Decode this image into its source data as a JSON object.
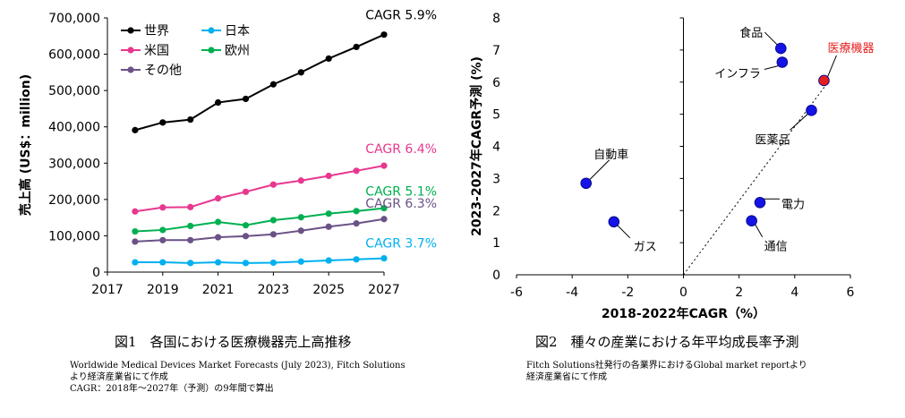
{
  "charts": {
    "left": {
      "type": "line",
      "ylabel": "売上高 (US$：million)",
      "xlim": [
        2017,
        2027
      ],
      "ylim": [
        0,
        700000
      ],
      "xticks": [
        "2017",
        "2019",
        "2021",
        "2023",
        "2025",
        "2027"
      ],
      "yticks": [
        "0",
        "100,000",
        "200,000",
        "300,000",
        "400,000",
        "500,000",
        "600,000",
        "700,000"
      ],
      "x": [
        2018,
        2019,
        2020,
        2021,
        2022,
        2023,
        2024,
        2025,
        2026,
        2027
      ],
      "series": [
        {
          "name": "世界",
          "color": "#000000",
          "values": [
            391000,
            412000,
            420000,
            467000,
            477000,
            517000,
            550000,
            588000,
            620000,
            654000
          ],
          "annotation": "CAGR 5.9%"
        },
        {
          "name": "米国",
          "color": "#e8378f",
          "values": [
            167000,
            178000,
            179000,
            203000,
            221000,
            241000,
            252000,
            265000,
            279000,
            293000
          ],
          "annotation": "CAGR 6.4%"
        },
        {
          "name": "欧州",
          "color": "#00b050",
          "values": [
            112000,
            116000,
            127000,
            138000,
            129000,
            143000,
            151000,
            161000,
            168000,
            176000
          ],
          "annotation": "CAGR 5.1%"
        },
        {
          "name": "その他",
          "color": "#6a5286",
          "values": [
            84000,
            88000,
            88000,
            96000,
            99000,
            104000,
            114000,
            125000,
            134000,
            146000
          ],
          "annotation": "CAGR 6.3%"
        },
        {
          "name": "日本",
          "color": "#00b0f0",
          "values": [
            27000,
            27000,
            25000,
            27000,
            25000,
            26000,
            29000,
            32000,
            35000,
            38000
          ],
          "annotation": "CAGR 3.7%"
        }
      ],
      "legend_order": [
        "世界",
        "日本",
        "米国",
        "欧州",
        "その他"
      ],
      "legend_placement": "top-left"
    },
    "right": {
      "type": "scatter",
      "xlabel": "2018-2022年CAGR（%）",
      "ylabel": "2023-2027年CAGR予測 (%)",
      "xlim": [
        -6,
        6
      ],
      "ylim": [
        0,
        8
      ],
      "xticks": [
        "-6",
        "-4",
        "-2",
        "0",
        "2",
        "4",
        "6"
      ],
      "yticks": [
        "0",
        "1",
        "2",
        "3",
        "4",
        "5",
        "6",
        "7",
        "8"
      ],
      "diagonal": "y = x (dotted)",
      "points": [
        {
          "label": "食品",
          "x": 3.5,
          "y": 7.05,
          "color": "#1414e6"
        },
        {
          "label": "インフラ",
          "x": 3.55,
          "y": 6.62,
          "color": "#1414e6"
        },
        {
          "label": "医療機器",
          "x": 5.05,
          "y": 6.05,
          "color": "#e61e1e",
          "label_color": "#e61e1e"
        },
        {
          "label": "医薬品",
          "x": 4.6,
          "y": 5.12,
          "color": "#1414e6"
        },
        {
          "label": "自動車",
          "x": -3.5,
          "y": 2.85,
          "color": "#1414e6"
        },
        {
          "label": "電力",
          "x": 2.75,
          "y": 2.25,
          "color": "#1414e6"
        },
        {
          "label": "ガス",
          "x": -2.5,
          "y": 1.65,
          "color": "#1414e6"
        },
        {
          "label": "通信",
          "x": 2.45,
          "y": 1.68,
          "color": "#1414e6"
        }
      ]
    }
  },
  "captions": {
    "fig1": "図1　各国における医療機器売上高推移",
    "fig2": "図2　種々の産業における年平均成長率予測"
  },
  "notes": {
    "left_1": "Worldwide Medical Devices Market Forecasts (July 2023), Fitch Solutions",
    "left_2": "より経済産業省にて作成",
    "left_3": "CAGR：2018年～2027年（予測）の9年間で算出",
    "right_1": "Fitch Solutions社発行の各業界におけるGlobal market reportより",
    "right_2": "経済産業省にて作成"
  }
}
